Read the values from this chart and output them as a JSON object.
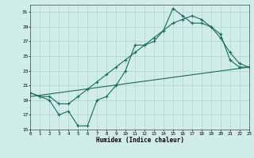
{
  "xlabel": "Humidex (Indice chaleur)",
  "background_color": "#d0eceb",
  "grid_color": "#b2d8d5",
  "line_color": "#1a6b5a",
  "x_min": 0,
  "x_max": 23,
  "y_min": 15,
  "y_max": 32,
  "yticks": [
    15,
    17,
    19,
    21,
    23,
    25,
    27,
    29,
    31
  ],
  "xticks": [
    0,
    1,
    2,
    3,
    4,
    5,
    6,
    7,
    8,
    9,
    10,
    11,
    12,
    13,
    14,
    15,
    16,
    17,
    18,
    19,
    20,
    21,
    22,
    23
  ],
  "line1_x": [
    0,
    1,
    2,
    3,
    4,
    5,
    6,
    7,
    8,
    9,
    10,
    11,
    12,
    13,
    14,
    15,
    16,
    17,
    18,
    19,
    20,
    21,
    22,
    23
  ],
  "line1_y": [
    20.0,
    19.5,
    19.0,
    17.0,
    17.5,
    15.5,
    15.5,
    19.0,
    19.5,
    21.0,
    23.0,
    26.5,
    26.5,
    27.0,
    28.5,
    31.5,
    30.5,
    29.5,
    29.5,
    29.0,
    28.0,
    24.5,
    23.5,
    23.5
  ],
  "line2_x": [
    0,
    1,
    2,
    3,
    4,
    5,
    6,
    7,
    8,
    9,
    10,
    11,
    12,
    13,
    14,
    15,
    16,
    17,
    18,
    19,
    20,
    21,
    22,
    23
  ],
  "line2_y": [
    20.0,
    19.5,
    19.5,
    18.5,
    18.5,
    19.5,
    20.5,
    21.5,
    22.5,
    23.5,
    24.5,
    25.5,
    26.5,
    27.5,
    28.5,
    29.5,
    30.0,
    30.5,
    30.0,
    29.0,
    27.5,
    25.5,
    24.0,
    23.5
  ],
  "line3_x": [
    0,
    23
  ],
  "line3_y": [
    19.5,
    23.5
  ]
}
